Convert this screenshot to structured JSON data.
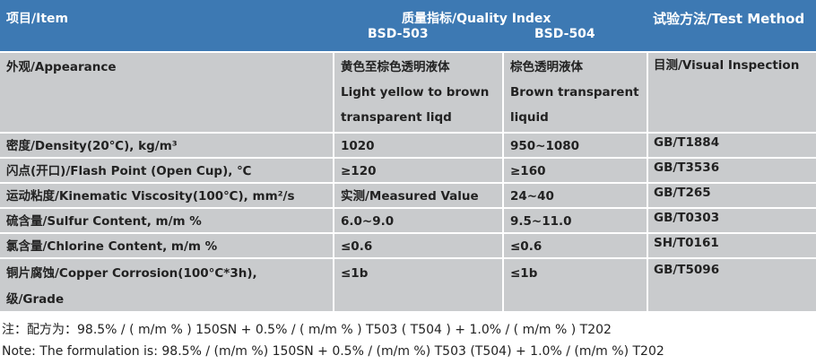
{
  "header": {
    "item": "项目/Item",
    "quality_index": "质量指标/Quality Index",
    "bsd503": "BSD-503",
    "bsd504": "BSD-504",
    "test_method": "试验方法/Test Method"
  },
  "rows": [
    {
      "item": "外观/Appearance",
      "v503": [
        "黄色至棕色透明液体",
        "Light yellow to brown",
        "transparent liqd"
      ],
      "v504": [
        "棕色透明液体",
        "Brown transparent",
        "liquid"
      ],
      "method": "目测/Visual Inspection"
    },
    {
      "item": "密度/Density(20℃), kg/m³",
      "v503": [
        "1020"
      ],
      "v504": [
        "950~1080"
      ],
      "method": "GB/T1884"
    },
    {
      "item": "闪点(开口)/Flash Point (Open Cup), ℃",
      "v503": [
        "≥120"
      ],
      "v504": [
        "≥160"
      ],
      "method": "GB/T3536"
    },
    {
      "item": "运动粘度/Kinematic Viscosity(100℃), mm²/s",
      "v503": [
        "实测/Measured Value"
      ],
      "v504": [
        "24~40"
      ],
      "method": "GB/T265"
    },
    {
      "item": "硫含量/Sulfur Content, m/m %",
      "v503": [
        "6.0~9.0"
      ],
      "v504": [
        "9.5~11.0"
      ],
      "method": "GB/T0303"
    },
    {
      "item": "氯含量/Chlorine Content, m/m %",
      "v503": [
        "≤0.6"
      ],
      "v504": [
        "≤0.6"
      ],
      "method": "SH/T0161"
    },
    {
      "item": "铜片腐蚀/Copper Corrosion(100°C*3h),",
      "item2": "级/Grade",
      "v503": [
        "≤1b"
      ],
      "v504": [
        "≤1b"
      ],
      "method": "GB/T5096"
    }
  ],
  "notes": {
    "cn": "注：配方为：98.5% / ( m/m % ) 150SN + 0.5% / ( m/m % ) T503 ( T504 ) + 1.0% / ( m/m % ) T202",
    "en": "Note: The formulation is: 98.5% / (m/m %) 150SN + 0.5% / (m/m %) T503 (T504) + 1.0% / (m/m %) T202"
  },
  "colors": {
    "header_bg": "#3d79b3",
    "row_bg": "#c9cbcd"
  }
}
